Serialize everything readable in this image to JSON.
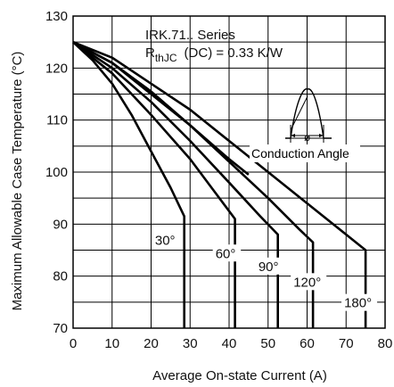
{
  "chart_data": {
    "type": "line",
    "xlabel": "Average On-state Current (A)",
    "ylabel": "Maximum Allowable Case Temperature (°C)",
    "xlim": [
      0,
      80
    ],
    "ylim": [
      70,
      130
    ],
    "x_ticks": [
      "0",
      "10",
      "20",
      "30",
      "40",
      "50",
      "60",
      "70",
      "80"
    ],
    "y_ticks": [
      "70",
      "80",
      "90",
      "100",
      "110",
      "120",
      "130"
    ],
    "grid": true,
    "annotations": {
      "series_title": "IRK.71.. Series",
      "rth_main": "R",
      "rth_sub": "thJC",
      "rth_rest": "(DC) = 0.33 K/W",
      "conduction_angle": "Conduction Angle",
      "phi": "ø"
    },
    "series": [
      {
        "name": "30°",
        "label": "30°",
        "points": [
          [
            0,
            125
          ],
          [
            5,
            121.5
          ],
          [
            10,
            117
          ],
          [
            15,
            111
          ],
          [
            20,
            104
          ],
          [
            25,
            97
          ],
          [
            28.5,
            91.5
          ],
          [
            28.5,
            70
          ]
        ]
      },
      {
        "name": "60°",
        "label": "60°",
        "points": [
          [
            0,
            125
          ],
          [
            10,
            119
          ],
          [
            20,
            111
          ],
          [
            30,
            102.5
          ],
          [
            36,
            96.5
          ],
          [
            41.5,
            91
          ],
          [
            41.5,
            70
          ]
        ]
      },
      {
        "name": "90°",
        "label": "90°",
        "points": [
          [
            0,
            125
          ],
          [
            10,
            120
          ],
          [
            20,
            113.5
          ],
          [
            30,
            106
          ],
          [
            40,
            98
          ],
          [
            48,
            91.5
          ],
          [
            52.5,
            88
          ],
          [
            52.5,
            70
          ]
        ]
      },
      {
        "name": "120°",
        "label": "120°",
        "points": [
          [
            0,
            125
          ],
          [
            10,
            121
          ],
          [
            20,
            115
          ],
          [
            30,
            109
          ],
          [
            40,
            102
          ],
          [
            50,
            95
          ],
          [
            58,
            89
          ],
          [
            61.5,
            86.5
          ],
          [
            61.5,
            70
          ]
        ]
      },
      {
        "name": "180°",
        "label": "180°",
        "points": [
          [
            0,
            125
          ],
          [
            10,
            122
          ],
          [
            20,
            117
          ],
          [
            30,
            112
          ],
          [
            40,
            106
          ],
          [
            50,
            100
          ],
          [
            60,
            94
          ],
          [
            70,
            88
          ],
          [
            75,
            85
          ],
          [
            75,
            70
          ]
        ]
      },
      {
        "name": "DC",
        "label": "",
        "points": [
          [
            0,
            125
          ],
          [
            10,
            121
          ],
          [
            20,
            115.5
          ],
          [
            30,
            109
          ],
          [
            40,
            102.5
          ],
          [
            45,
            99.5
          ]
        ]
      }
    ]
  }
}
